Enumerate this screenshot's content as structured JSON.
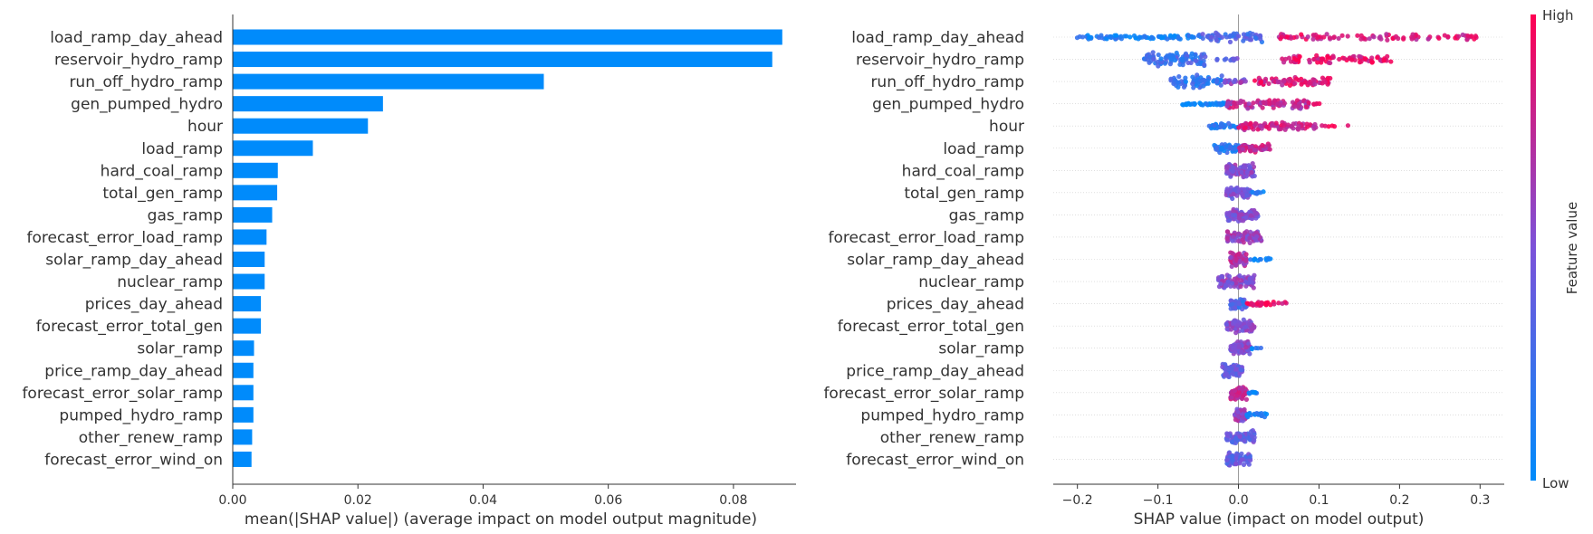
{
  "chart_data": [
    {
      "type": "bar",
      "orientation": "horizontal",
      "xlabel": "mean(|SHAP value|) (average impact on model output magnitude)",
      "xlim": [
        0,
        0.09
      ],
      "xticks": [
        0.0,
        0.02,
        0.04,
        0.06,
        0.08
      ],
      "xtick_labels": [
        "0.00",
        "0.02",
        "0.04",
        "0.06",
        "0.08"
      ],
      "bar_color": "#008bfb",
      "categories": [
        "load_ramp_day_ahead",
        "reservoir_hydro_ramp",
        "run_off_hydro_ramp",
        "gen_pumped_hydro",
        "hour",
        "load_ramp",
        "hard_coal_ramp",
        "total_gen_ramp",
        "gas_ramp",
        "forecast_error_load_ramp",
        "solar_ramp_day_ahead",
        "nuclear_ramp",
        "prices_day_ahead",
        "forecast_error_total_gen",
        "solar_ramp",
        "price_ramp_day_ahead",
        "forecast_error_solar_ramp",
        "pumped_hydro_ramp",
        "other_renew_ramp",
        "forecast_error_wind_on"
      ],
      "values": [
        0.0878,
        0.0862,
        0.0497,
        0.024,
        0.0216,
        0.0128,
        0.0072,
        0.0071,
        0.0063,
        0.0054,
        0.0051,
        0.0051,
        0.0045,
        0.0045,
        0.0034,
        0.0033,
        0.0033,
        0.0033,
        0.0031,
        0.003
      ]
    },
    {
      "type": "scatter",
      "subtype": "beeswarm",
      "xlabel": "SHAP value (impact on model output)",
      "xlim": [
        -0.23,
        0.33
      ],
      "xticks": [
        -0.2,
        -0.1,
        0.0,
        0.1,
        0.2,
        0.3
      ],
      "xtick_labels": [
        "−0.2",
        "−0.1",
        "0.0",
        "0.1",
        "0.2",
        "0.3"
      ],
      "colorbar": {
        "label": "Feature value",
        "high_label": "High",
        "low_label": "Low",
        "low_color": "#008bfb",
        "mid_color": "#7c52d9",
        "high_color": "#ff0052"
      },
      "features": [
        {
          "name": "load_ramp_day_ahead",
          "min": -0.205,
          "max": 0.3,
          "groups": [
            {
              "from": -0.205,
              "to": -0.02,
              "spread": 0.25,
              "color": 0.1,
              "n": 95
            },
            {
              "from": -0.05,
              "to": 0.03,
              "spread": 0.55,
              "color": 0.3,
              "n": 60
            },
            {
              "from": 0.05,
              "to": 0.3,
              "spread": 0.35,
              "color": 0.85,
              "n": 90
            }
          ]
        },
        {
          "name": "reservoir_hydro_ramp",
          "min": -0.12,
          "max": 0.19,
          "groups": [
            {
              "from": -0.12,
              "to": -0.04,
              "spread": 0.75,
              "color": 0.25,
              "n": 90
            },
            {
              "from": -0.03,
              "to": 0.0,
              "spread": 0.2,
              "color": 0.4,
              "n": 10
            },
            {
              "from": 0.05,
              "to": 0.19,
              "spread": 0.45,
              "color": 0.9,
              "n": 80
            }
          ]
        },
        {
          "name": "run_off_hydro_ramp",
          "min": -0.085,
          "max": 0.115,
          "groups": [
            {
              "from": -0.085,
              "to": -0.02,
              "spread": 0.7,
              "color": 0.2,
              "n": 70
            },
            {
              "from": -0.02,
              "to": 0.01,
              "spread": 0.3,
              "color": 0.55,
              "n": 20
            },
            {
              "from": 0.02,
              "to": 0.115,
              "spread": 0.45,
              "color": 0.85,
              "n": 70
            }
          ]
        },
        {
          "name": "gen_pumped_hydro",
          "min": -0.07,
          "max": 0.11,
          "groups": [
            {
              "from": -0.07,
              "to": -0.01,
              "spread": 0.15,
              "color": 0.05,
              "n": 50
            },
            {
              "from": -0.015,
              "to": 0.09,
              "spread": 0.55,
              "color": 0.75,
              "n": 90
            },
            {
              "from": 0.09,
              "to": 0.11,
              "spread": 0.1,
              "color": 0.9,
              "n": 5
            }
          ]
        },
        {
          "name": "hour",
          "min": -0.04,
          "max": 0.14,
          "groups": [
            {
              "from": -0.04,
              "to": 0.0,
              "spread": 0.3,
              "color": 0.15,
              "n": 30
            },
            {
              "from": 0.0,
              "to": 0.1,
              "spread": 0.45,
              "color": 0.8,
              "n": 80
            },
            {
              "from": 0.1,
              "to": 0.14,
              "spread": 0.1,
              "color": 0.95,
              "n": 6
            }
          ]
        },
        {
          "name": "load_ramp",
          "min": -0.03,
          "max": 0.04,
          "groups": [
            {
              "from": -0.03,
              "to": 0.0,
              "spread": 0.5,
              "color": 0.15,
              "n": 60
            },
            {
              "from": 0.0,
              "to": 0.04,
              "spread": 0.5,
              "color": 0.75,
              "n": 50
            }
          ]
        },
        {
          "name": "hard_coal_ramp",
          "min": -0.015,
          "max": 0.02,
          "groups": [
            {
              "from": -0.015,
              "to": 0.02,
              "spread": 0.75,
              "color": 0.55,
              "n": 90
            }
          ]
        },
        {
          "name": "total_gen_ramp",
          "min": -0.015,
          "max": 0.033,
          "groups": [
            {
              "from": -0.015,
              "to": 0.015,
              "spread": 0.7,
              "color": 0.5,
              "n": 80
            },
            {
              "from": 0.015,
              "to": 0.033,
              "spread": 0.15,
              "color": 0.1,
              "n": 10
            }
          ]
        },
        {
          "name": "gas_ramp",
          "min": -0.015,
          "max": 0.025,
          "groups": [
            {
              "from": -0.015,
              "to": 0.025,
              "spread": 0.7,
              "color": 0.5,
              "n": 90
            }
          ]
        },
        {
          "name": "forecast_error_load_ramp",
          "min": -0.015,
          "max": 0.03,
          "groups": [
            {
              "from": -0.015,
              "to": 0.03,
              "spread": 0.7,
              "color": 0.6,
              "n": 90
            }
          ]
        },
        {
          "name": "solar_ramp_day_ahead",
          "min": -0.01,
          "max": 0.04,
          "groups": [
            {
              "from": -0.01,
              "to": 0.01,
              "spread": 0.8,
              "color": 0.7,
              "n": 80
            },
            {
              "from": 0.01,
              "to": 0.04,
              "spread": 0.15,
              "color": 0.05,
              "n": 12
            }
          ]
        },
        {
          "name": "nuclear_ramp",
          "min": -0.025,
          "max": 0.02,
          "groups": [
            {
              "from": -0.025,
              "to": 0.02,
              "spread": 0.7,
              "color": 0.55,
              "n": 90
            }
          ]
        },
        {
          "name": "prices_day_ahead",
          "min": -0.01,
          "max": 0.06,
          "groups": [
            {
              "from": -0.01,
              "to": 0.01,
              "spread": 0.6,
              "color": 0.3,
              "n": 50
            },
            {
              "from": 0.01,
              "to": 0.06,
              "spread": 0.25,
              "color": 0.95,
              "n": 30
            }
          ]
        },
        {
          "name": "forecast_error_total_gen",
          "min": -0.015,
          "max": 0.02,
          "groups": [
            {
              "from": -0.015,
              "to": 0.02,
              "spread": 0.7,
              "color": 0.55,
              "n": 85
            }
          ]
        },
        {
          "name": "solar_ramp",
          "min": -0.01,
          "max": 0.03,
          "groups": [
            {
              "from": -0.01,
              "to": 0.015,
              "spread": 0.7,
              "color": 0.55,
              "n": 75
            },
            {
              "from": 0.015,
              "to": 0.03,
              "spread": 0.1,
              "color": 0.1,
              "n": 5
            }
          ]
        },
        {
          "name": "price_ramp_day_ahead",
          "min": -0.02,
          "max": 0.005,
          "groups": [
            {
              "from": -0.02,
              "to": 0.005,
              "spread": 0.7,
              "color": 0.4,
              "n": 80
            }
          ]
        },
        {
          "name": "forecast_error_solar_ramp",
          "min": -0.01,
          "max": 0.025,
          "groups": [
            {
              "from": -0.01,
              "to": 0.01,
              "spread": 0.75,
              "color": 0.75,
              "n": 70
            },
            {
              "from": 0.01,
              "to": 0.025,
              "spread": 0.15,
              "color": 0.05,
              "n": 10
            }
          ]
        },
        {
          "name": "pumped_hydro_ramp",
          "min": -0.005,
          "max": 0.035,
          "groups": [
            {
              "from": -0.005,
              "to": 0.01,
              "spread": 0.7,
              "color": 0.6,
              "n": 65
            },
            {
              "from": 0.01,
              "to": 0.035,
              "spread": 0.25,
              "color": 0.05,
              "n": 20
            }
          ]
        },
        {
          "name": "other_renew_ramp",
          "min": -0.015,
          "max": 0.02,
          "groups": [
            {
              "from": -0.015,
              "to": 0.02,
              "spread": 0.7,
              "color": 0.4,
              "n": 80
            }
          ]
        },
        {
          "name": "forecast_error_wind_on",
          "min": -0.015,
          "max": 0.015,
          "groups": [
            {
              "from": -0.015,
              "to": 0.015,
              "spread": 0.7,
              "color": 0.4,
              "n": 75
            }
          ]
        }
      ]
    }
  ]
}
